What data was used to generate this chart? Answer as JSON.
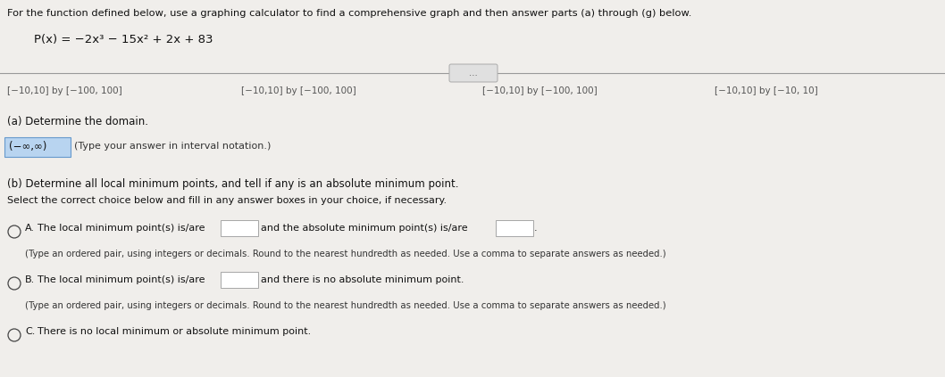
{
  "title_line": "For the function defined below, use a graphing calculator to find a comprehensive graph and then answer parts (a) through (g) below.",
  "function_label": "P(x) = −2x³ − 15x² + 2x + 83",
  "window_options": [
    "[−10,10] by [−100, 100]",
    "[−10,10] by [−100, 100]",
    "[−10,10] by [−100, 100]",
    "[−10,10] by [−10, 10]"
  ],
  "part_a_label": "(a) Determine the domain.",
  "part_a_answer": "(−∞,∞)",
  "part_a_hint": "(Type your answer in interval notation.)",
  "part_b_label": "(b) Determine all local minimum points, and tell if any is an absolute minimum point.",
  "part_b_subtext": "Select the correct choice below and fill in any answer boxes in your choice, if necessary.",
  "choice_A_prefix": "A.  The local minimum point(s) is/are",
  "choice_A_middle": " and the absolute minimum point(s) is/are",
  "choice_A_suffix": ".",
  "choice_A_note": "(Type an ordered pair, using integers or decimals. Round to the nearest hundredth as needed. Use a comma to separate answers as needed.)",
  "choice_B_prefix": "B.  The local minimum point(s) is/are",
  "choice_B_middle": " and there is no absolute minimum point.",
  "choice_B_note": "(Type an ordered pair, using integers or decimals. Round to the nearest hundredth as needed. Use a comma to separate answers as needed.)",
  "choice_C": "C.  There is no local minimum or absolute minimum point.",
  "bg_color": "#e8e8e8",
  "page_bg": "#f0eeeb",
  "highlight_color": "#b8d4f0",
  "text_color": "#111111",
  "hint_color": "#333333",
  "circle_color": "#444444",
  "line_color": "#999999",
  "box_edge_color": "#999999",
  "box_fill_color": "#ffffff",
  "window_text_color": "#555555",
  "dots_bg": "#e0e0e0"
}
